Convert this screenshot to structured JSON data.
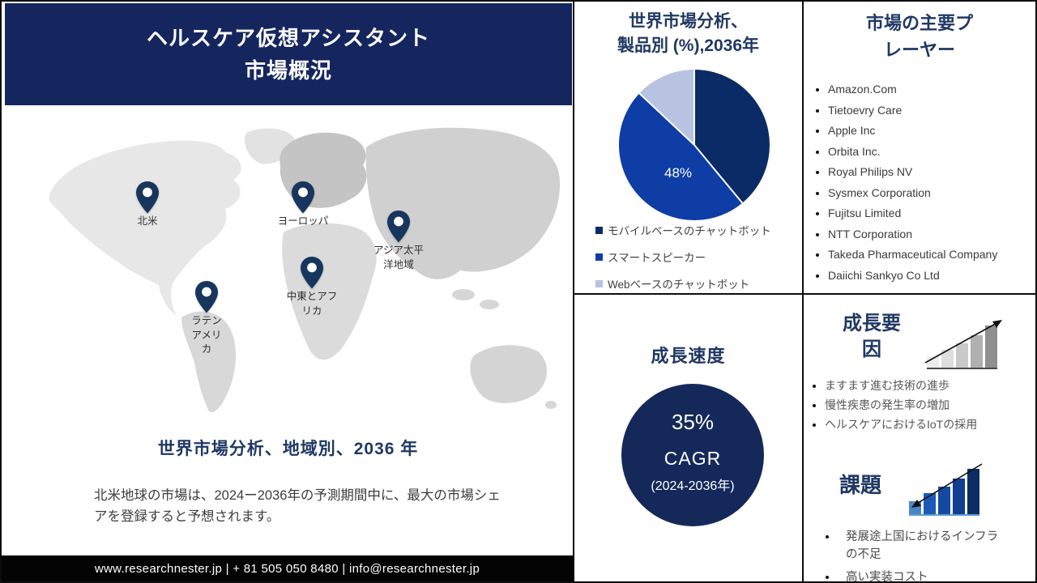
{
  "header": {
    "title": "ヘルスケア仮想アシスタント\n市場概況"
  },
  "map": {
    "regions": [
      {
        "label": "北米"
      },
      {
        "label": "ヨーロッパ"
      },
      {
        "label": "アジア太平\n洋地域"
      },
      {
        "label": "中東とアフ\nリカ"
      },
      {
        "label": "ラテン\nアメリ\nカ"
      }
    ]
  },
  "left": {
    "regional_heading": "世界市場分析、地域別、2036 年",
    "note": "北米地球の市場は、2024ー2036年の予測期間中に、最大の市場シェアを登録すると予想されます。"
  },
  "footer": {
    "text": "www.researchnester.jp | + 81 505 050 8480 | info@researchnester.jp"
  },
  "chart_data": {
    "type": "pie",
    "title": "世界市場分析、\n製品別 (%),2036年",
    "labels": [
      "モバイルベースのチャットボット",
      "スマートスピーカー",
      "Webベースのチャットボット"
    ],
    "values": [
      39,
      48,
      13
    ],
    "colors": [
      "#0a2b66",
      "#0e3da6",
      "#b7c3e1"
    ],
    "data_label": "48%",
    "data_label_slice": "スマートスピーカー",
    "legend_position": "bottom-left"
  },
  "players": {
    "title": "市場の主要プ\nレーヤー",
    "items": [
      "Amazon.Com",
      "Tietoevry Care",
      "Apple Inc",
      "Orbita Inc.",
      "Royal Philips NV",
      "Sysmex Corporation",
      "Fujitsu Limited",
      "NTT Corporation",
      "Takeda Pharmaceutical Company",
      "Daiichi Sankyo Co Ltd"
    ]
  },
  "growth_rate": {
    "title": "成長速度",
    "value": "35%",
    "metric": "CAGR",
    "period": "(2024-2036年)",
    "circle_color": "#14295a"
  },
  "growth_factors": {
    "title": "成長要因",
    "items": [
      "ますます進む技術の進歩",
      "慢性疾患の発生率の増加",
      "ヘルスケアにおけるIoTの採用"
    ]
  },
  "challenges": {
    "title": "課題",
    "items": [
      "発展途上国におけるインフラの不足",
      "高い実装コスト"
    ]
  },
  "icons": {
    "map_pin": "location-pin",
    "growth_chart": "ascending-gray-bar-chart-with-up-right-arrow",
    "challenge_chart": "ascending-blue-bar-chart-with-down-left-arrow"
  },
  "colors": {
    "banner_bg": "#15265f",
    "heading_text": "#1f3864",
    "footer_bg": "#040404",
    "border": "#0d0d0d"
  }
}
